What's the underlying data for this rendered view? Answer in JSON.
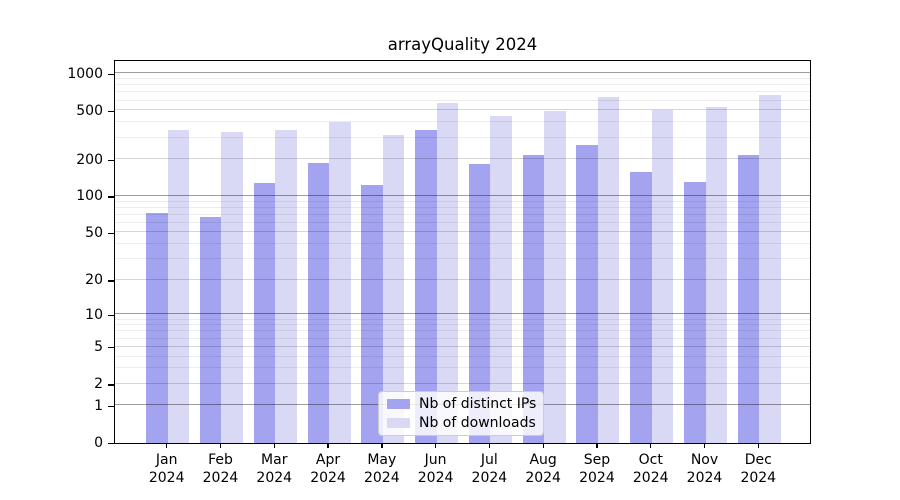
{
  "title": "arrayQuality 2024",
  "chart_data": {
    "type": "bar",
    "title": "arrayQuality 2024",
    "categories": [
      "Jan",
      "Feb",
      "Mar",
      "Apr",
      "May",
      "Jun",
      "Jul",
      "Aug",
      "Sep",
      "Oct",
      "Nov",
      "Dec"
    ],
    "year": "2024",
    "series": [
      {
        "name": "Nb of distinct IPs",
        "color": "#a3a3ef",
        "values": [
          72,
          67,
          129,
          185,
          123,
          344,
          183,
          215,
          261,
          158,
          131,
          218
        ]
      },
      {
        "name": "Nb of downloads",
        "color": "#d9d9f6",
        "values": [
          348,
          331,
          348,
          401,
          313,
          580,
          452,
          493,
          646,
          500,
          536,
          670
        ]
      }
    ],
    "y_axis": {
      "scale": "log10(1+x)",
      "tick_values": [
        0,
        1,
        2,
        5,
        10,
        20,
        50,
        100,
        200,
        500,
        1000
      ],
      "tick_labels": [
        "0",
        "1",
        "2",
        "5",
        "10",
        "20",
        "50",
        "100",
        "200",
        "500",
        "1000"
      ],
      "minor_tick_values": [
        3,
        4,
        6,
        7,
        8,
        9,
        30,
        40,
        60,
        70,
        80,
        90,
        300,
        400,
        600,
        700,
        800,
        900
      ]
    },
    "grid": true,
    "legend_position": "lower-center",
    "colors": {
      "axis": "#000000",
      "grid_major": "#9e9e9e",
      "grid_minor": "#ebebeb",
      "legend_border": "#cccccc"
    }
  }
}
